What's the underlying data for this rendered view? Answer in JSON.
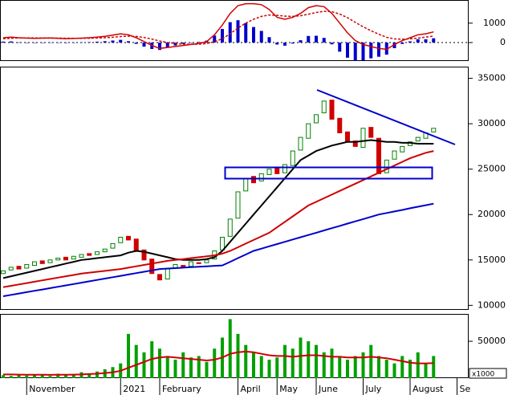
{
  "chart_data": [
    {
      "type": "macd",
      "ylim": [
        -950,
        2150
      ],
      "yticks": [
        0,
        1000
      ],
      "zero_line": true,
      "bars": {
        "color": "#0000cc",
        "values": [
          50,
          60,
          10,
          -10,
          -15,
          -2,
          8,
          -10,
          -25,
          -10,
          10,
          25,
          45,
          70,
          105,
          140,
          70,
          -65,
          -210,
          -330,
          -380,
          -250,
          -150,
          -70,
          -10,
          30,
          100,
          360,
          700,
          1050,
          1150,
          1000,
          800,
          600,
          280,
          -100,
          -160,
          -50,
          120,
          340,
          350,
          240,
          -90,
          -470,
          -780,
          -940,
          -910,
          -810,
          -730,
          -620,
          -290,
          -70,
          60,
          170,
          170,
          220,
          null,
          null,
          null,
          null
        ]
      },
      "series": [
        {
          "color": "#d00000",
          "dash": false,
          "values": [
            250,
            280,
            250,
            230,
            220,
            230,
            240,
            220,
            200,
            210,
            230,
            250,
            280,
            320,
            380,
            450,
            400,
            250,
            50,
            -150,
            -300,
            -250,
            -200,
            -150,
            -100,
            -50,
            50,
            400,
            900,
            1500,
            1900,
            2000,
            2000,
            1950,
            1700,
            1300,
            1200,
            1300,
            1500,
            1800,
            1900,
            1850,
            1500,
            1000,
            500,
            100,
            -100,
            -200,
            -300,
            -350,
            -100,
            100,
            250,
            400,
            450,
            550,
            null,
            null,
            null,
            null
          ]
        },
        {
          "color": "#d00000",
          "dash": true,
          "values": [
            200,
            220,
            240,
            240,
            235,
            232,
            232,
            230,
            225,
            220,
            220,
            225,
            235,
            250,
            275,
            310,
            330,
            315,
            260,
            180,
            80,
            0,
            -50,
            -80,
            -90,
            -80,
            -50,
            40,
            200,
            450,
            750,
            1000,
            1200,
            1350,
            1420,
            1400,
            1360,
            1350,
            1380,
            1460,
            1550,
            1610,
            1590,
            1470,
            1280,
            1040,
            810,
            610,
            430,
            270,
            190,
            170,
            190,
            230,
            280,
            330,
            null,
            null,
            null,
            null
          ]
        }
      ]
    },
    {
      "type": "candlestick",
      "ylim": [
        9500,
        36200
      ],
      "yticks": [
        10000,
        15000,
        20000,
        25000,
        30000,
        35000
      ],
      "up_color": "#008000",
      "down_color": "#d00000",
      "open": [
        13500,
        13900,
        14300,
        14100,
        14400,
        14900,
        14700,
        15000,
        15300,
        15100,
        15300,
        15700,
        15600,
        15900,
        16300,
        16900,
        17600,
        17300,
        16100,
        15100,
        13400,
        12900,
        14100,
        14400,
        14300,
        14700,
        14700,
        15100,
        16100,
        17600,
        19600,
        22600,
        24200,
        23700,
        24400,
        25100,
        24600,
        25400,
        27100,
        28400,
        30100,
        31200,
        32600,
        30600,
        29100,
        28100,
        27400,
        29600,
        28400,
        24600,
        26100,
        26900,
        27600,
        28100,
        28400,
        29100,
        null,
        null,
        null,
        null
      ],
      "close": [
        13800,
        14200,
        14000,
        14500,
        14800,
        14600,
        15000,
        15200,
        15000,
        15400,
        15600,
        15500,
        15900,
        16200,
        16800,
        17500,
        17200,
        16000,
        15000,
        13500,
        12800,
        14000,
        14500,
        14200,
        14800,
        14600,
        15000,
        16000,
        17500,
        19500,
        22500,
        24000,
        23500,
        24500,
        25000,
        24500,
        25500,
        27000,
        28500,
        30000,
        31000,
        32500,
        30500,
        29000,
        28000,
        27500,
        29500,
        28500,
        24500,
        26000,
        27000,
        27500,
        28000,
        28500,
        29000,
        29500,
        null,
        null,
        null,
        null
      ],
      "series": [
        {
          "color": "#000000",
          "values": [
            13000,
            13200,
            13400,
            13600,
            13800,
            14000,
            14200,
            14400,
            14600,
            14800,
            15000,
            15100,
            15200,
            15300,
            15400,
            15500,
            15800,
            16000,
            15900,
            15700,
            15500,
            15300,
            15100,
            15000,
            15000,
            15000,
            15100,
            15300,
            16000,
            17000,
            18000,
            19000,
            20000,
            21000,
            22000,
            23000,
            24000,
            25000,
            26000,
            26500,
            27000,
            27300,
            27600,
            27800,
            28000,
            28000,
            28100,
            28200,
            28100,
            28000,
            28000,
            27900,
            27900,
            27800,
            27800,
            27800,
            null,
            null,
            null,
            null
          ]
        },
        {
          "color": "#d00000",
          "values": [
            12000,
            12150,
            12300,
            12450,
            12600,
            12750,
            12900,
            13050,
            13200,
            13350,
            13500,
            13600,
            13700,
            13800,
            13900,
            14000,
            14150,
            14300,
            14450,
            14600,
            14750,
            14900,
            15000,
            15100,
            15200,
            15300,
            15400,
            15500,
            15700,
            16000,
            16400,
            16800,
            17200,
            17600,
            18000,
            18600,
            19200,
            19800,
            20400,
            21000,
            21400,
            21800,
            22200,
            22600,
            23000,
            23400,
            23800,
            24200,
            24600,
            25000,
            25400,
            25800,
            26200,
            26500,
            26800,
            27000,
            null,
            null,
            null,
            null
          ]
        },
        {
          "color": "#0000cc",
          "values": [
            11000,
            11150,
            11300,
            11450,
            11600,
            11750,
            11900,
            12050,
            12200,
            12350,
            12500,
            12650,
            12800,
            12950,
            13100,
            13250,
            13400,
            13550,
            13700,
            13850,
            14000,
            14050,
            14100,
            14150,
            14200,
            14250,
            14300,
            14350,
            14400,
            14800,
            15200,
            15600,
            16000,
            16250,
            16500,
            16750,
            17000,
            17250,
            17500,
            17750,
            18000,
            18250,
            18500,
            18750,
            19000,
            19250,
            19500,
            19750,
            20000,
            20170,
            20340,
            20510,
            20690,
            20860,
            21030,
            21200,
            null,
            null,
            null,
            null
          ]
        }
      ]
    },
    {
      "type": "volume",
      "ylim": [
        0,
        86000
      ],
      "yticks": [
        50000
      ],
      "unit_label": "x1000",
      "color": "#00a000",
      "categories": [
        null,
        null,
        null,
        "November",
        null,
        null,
        null,
        null,
        null,
        null,
        null,
        null,
        null,
        null,
        null,
        "2021",
        null,
        null,
        null,
        null,
        "February",
        null,
        null,
        null,
        null,
        null,
        null,
        null,
        null,
        null,
        "April",
        null,
        null,
        null,
        null,
        "May",
        null,
        null,
        null,
        null,
        "June",
        null,
        null,
        null,
        null,
        null,
        "July",
        null,
        null,
        null,
        null,
        null,
        "August",
        null,
        null,
        null,
        null,
        null,
        "Se",
        null
      ],
      "values": [
        4000,
        3000,
        5000,
        3500,
        4500,
        5000,
        3000,
        6000,
        4000,
        5500,
        8000,
        6000,
        9000,
        12000,
        15000,
        20000,
        60000,
        45000,
        35000,
        50000,
        40000,
        30000,
        25000,
        35000,
        28000,
        30000,
        22000,
        40000,
        55000,
        80000,
        60000,
        45000,
        35000,
        30000,
        25000,
        28000,
        45000,
        40000,
        55000,
        50000,
        45000,
        35000,
        40000,
        30000,
        25000,
        30000,
        35000,
        45000,
        30000,
        25000,
        20000,
        30000,
        25000,
        35000,
        20000,
        30000,
        null,
        null,
        null,
        null
      ],
      "series": [
        {
          "color": "#d00000",
          "values": [
            5000,
            5000,
            4800,
            4700,
            4600,
            4600,
            4500,
            4600,
            4700,
            4800,
            5000,
            5500,
            6000,
            7000,
            8000,
            10000,
            14000,
            18000,
            22000,
            26000,
            28000,
            29000,
            28000,
            27000,
            26000,
            25000,
            24000,
            25000,
            28000,
            33000,
            35000,
            36000,
            35000,
            33000,
            31000,
            30000,
            30000,
            29000,
            30000,
            31000,
            31000,
            30000,
            29000,
            29000,
            28000,
            28000,
            28000,
            29000,
            28000,
            27000,
            25000,
            23000,
            21000,
            20000,
            20000,
            20500,
            null,
            null,
            null,
            null
          ]
        }
      ]
    }
  ]
}
